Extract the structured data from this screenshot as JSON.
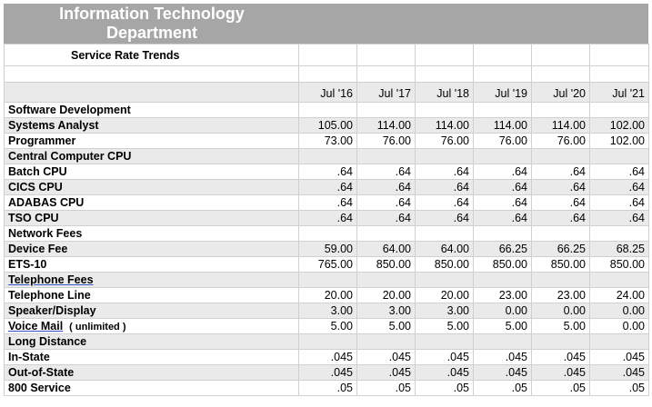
{
  "banner": {
    "title_line1": "Information Technology",
    "title_line2": "Department"
  },
  "report": {
    "title": "Service Rate Trends"
  },
  "columns": [
    "Jul '16",
    "Jul '17",
    "Jul '18",
    "Jul '19",
    "Jul '20",
    "Jul '21"
  ],
  "sections": {
    "software": {
      "heading": "Software Development",
      "rows": [
        {
          "label": "Systems Analyst",
          "values": [
            "105.00",
            "114.00",
            "114.00",
            "114.00",
            "114.00",
            "102.00"
          ]
        },
        {
          "label": "Programmer",
          "values": [
            "73.00",
            "76.00",
            "76.00",
            "76.00",
            "76.00",
            "102.00"
          ]
        }
      ]
    },
    "cpu": {
      "heading": "Central Computer CPU",
      "rows": [
        {
          "label": "Batch CPU",
          "values": [
            ".64",
            ".64",
            ".64",
            ".64",
            ".64",
            ".64"
          ]
        },
        {
          "label": "CICS CPU",
          "values": [
            ".64",
            ".64",
            ".64",
            ".64",
            ".64",
            ".64"
          ]
        },
        {
          "label": "ADABAS CPU",
          "values": [
            ".64",
            ".64",
            ".64",
            ".64",
            ".64",
            ".64"
          ]
        },
        {
          "label": "TSO CPU",
          "values": [
            ".64",
            ".64",
            ".64",
            ".64",
            ".64",
            ".64"
          ]
        }
      ]
    },
    "network": {
      "heading": "Network Fees",
      "rows": [
        {
          "label": "Device Fee",
          "values": [
            "59.00",
            "64.00",
            "64.00",
            "66.25",
            "66.25",
            "68.25"
          ]
        },
        {
          "label": "ETS-10",
          "values": [
            "765.00",
            "850.00",
            "850.00",
            "850.00",
            "850.00",
            "850.00"
          ]
        }
      ]
    },
    "telephone": {
      "heading": "Telephone  Fees",
      "rows": [
        {
          "label": "Telephone Line",
          "values": [
            "20.00",
            "20.00",
            "20.00",
            "23.00",
            "23.00",
            "24.00"
          ]
        },
        {
          "label": "Speaker/Display",
          "values": [
            "3.00",
            "3.00",
            "3.00",
            "0.00",
            "0.00",
            "0.00"
          ]
        },
        {
          "label": "Voice Mail",
          "label_note": "( unlimited )",
          "values": [
            "5.00",
            "5.00",
            "5.00",
            "5.00",
            "5.00",
            "0.00"
          ]
        }
      ]
    },
    "longdistance": {
      "heading": "Long Distance",
      "rows": [
        {
          "label": "In-State",
          "values": [
            ".045",
            ".045",
            ".045",
            ".045",
            ".045",
            ".045"
          ]
        },
        {
          "label": "Out-of-State",
          "values": [
            ".045",
            ".045",
            ".045",
            ".045",
            ".045",
            ".045"
          ]
        },
        {
          "label": "800 Service",
          "values": [
            ".05",
            ".05",
            ".05",
            ".05",
            ".05",
            ".05"
          ]
        }
      ]
    }
  },
  "colors": {
    "banner_bg": "#a6a6a6",
    "banner_text": "#ffffff",
    "row_shade": "#eaeaea",
    "grid_line": "#d0d0d0"
  }
}
